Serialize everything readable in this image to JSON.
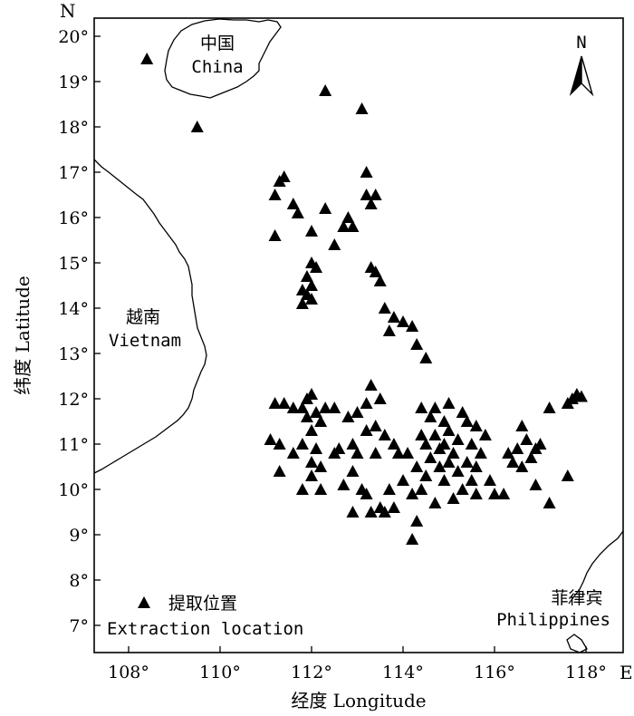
{
  "map": {
    "corner_north": "N",
    "corner_east": "E",
    "north_arrow_label": "N",
    "x_axis_title": "经度 Longitude",
    "y_axis_title": "纬度 Latitude",
    "lon_ticks": [
      "108°",
      "110°",
      "112°",
      "114°",
      "116°",
      "118°"
    ],
    "lat_ticks": [
      "20°",
      "19°",
      "18°",
      "17°",
      "16°",
      "15°",
      "14°",
      "13°",
      "12°",
      "11°",
      "10°",
      "9°",
      "8°",
      "7°"
    ],
    "regions": {
      "china_zh": "中国",
      "china_en": "China",
      "vietnam_zh": "越南",
      "vietnam_en": "Vietnam",
      "philippines_zh": "菲律宾",
      "philippines_en": "Philippines"
    },
    "legend": {
      "label_zh": "提取位置",
      "label_en": "Extraction location"
    },
    "colors": {
      "land_outline": "#000000",
      "marker": "#000000",
      "background": "#ffffff"
    },
    "extent": {
      "lon_min": 107.3,
      "lon_max": 118.9,
      "lat_min": 6.4,
      "lat_max": 20.4
    },
    "extraction_locations": [
      [
        108.4,
        19.5
      ],
      [
        109.5,
        18.0
      ],
      [
        112.3,
        18.8
      ],
      [
        113.1,
        18.4
      ],
      [
        111.4,
        16.9
      ],
      [
        111.3,
        16.8
      ],
      [
        111.2,
        16.5
      ],
      [
        111.6,
        16.3
      ],
      [
        111.7,
        16.1
      ],
      [
        112.3,
        16.2
      ],
      [
        112.0,
        15.7
      ],
      [
        111.2,
        15.6
      ],
      [
        113.2,
        17.0
      ],
      [
        113.2,
        16.5
      ],
      [
        113.4,
        16.5
      ],
      [
        113.3,
        16.3
      ],
      [
        112.7,
        15.8
      ],
      [
        112.9,
        15.8
      ],
      [
        112.8,
        16.0
      ],
      [
        112.5,
        15.4
      ],
      [
        112.0,
        15.0
      ],
      [
        112.1,
        14.9
      ],
      [
        111.9,
        14.7
      ],
      [
        111.8,
        14.4
      ],
      [
        111.9,
        14.3
      ],
      [
        112.0,
        14.5
      ],
      [
        111.8,
        14.1
      ],
      [
        112.0,
        14.2
      ],
      [
        113.3,
        14.9
      ],
      [
        113.4,
        14.8
      ],
      [
        113.5,
        14.6
      ],
      [
        113.6,
        14.0
      ],
      [
        113.8,
        13.8
      ],
      [
        114.0,
        13.7
      ],
      [
        113.7,
        13.5
      ],
      [
        114.2,
        13.6
      ],
      [
        114.3,
        13.2
      ],
      [
        114.5,
        12.9
      ],
      [
        111.2,
        11.9
      ],
      [
        111.4,
        11.9
      ],
      [
        111.6,
        11.8
      ],
      [
        111.9,
        12.0
      ],
      [
        112.0,
        12.1
      ],
      [
        111.8,
        11.8
      ],
      [
        112.1,
        11.7
      ],
      [
        112.3,
        11.8
      ],
      [
        112.5,
        11.8
      ],
      [
        111.9,
        11.6
      ],
      [
        112.2,
        11.5
      ],
      [
        112.0,
        11.3
      ],
      [
        111.1,
        11.1
      ],
      [
        111.3,
        11.0
      ],
      [
        111.8,
        11.0
      ],
      [
        112.1,
        10.9
      ],
      [
        111.6,
        10.8
      ],
      [
        112.5,
        10.8
      ],
      [
        111.3,
        10.4
      ],
      [
        112.0,
        10.6
      ],
      [
        112.2,
        10.5
      ],
      [
        112.0,
        10.3
      ],
      [
        111.8,
        10.0
      ],
      [
        112.2,
        10.0
      ],
      [
        112.7,
        10.1
      ],
      [
        112.8,
        11.6
      ],
      [
        113.0,
        11.7
      ],
      [
        113.2,
        11.3
      ],
      [
        113.4,
        11.4
      ],
      [
        113.6,
        11.2
      ],
      [
        113.3,
        12.3
      ],
      [
        113.5,
        12.0
      ],
      [
        113.2,
        11.9
      ],
      [
        112.9,
        11.0
      ],
      [
        112.6,
        10.9
      ],
      [
        113.0,
        10.8
      ],
      [
        113.4,
        10.8
      ],
      [
        112.9,
        10.4
      ],
      [
        113.1,
        10.0
      ],
      [
        113.2,
        9.9
      ],
      [
        112.9,
        9.5
      ],
      [
        113.3,
        9.5
      ],
      [
        113.5,
        9.6
      ],
      [
        113.6,
        9.5
      ],
      [
        113.8,
        9.6
      ],
      [
        113.7,
        10.0
      ],
      [
        114.0,
        10.2
      ],
      [
        113.9,
        10.8
      ],
      [
        114.3,
        10.5
      ],
      [
        114.5,
        10.3
      ],
      [
        114.2,
        9.9
      ],
      [
        114.4,
        10.0
      ],
      [
        114.3,
        9.3
      ],
      [
        114.2,
        8.9
      ],
      [
        114.4,
        11.8
      ],
      [
        114.6,
        11.6
      ],
      [
        114.4,
        11.2
      ],
      [
        114.5,
        11.0
      ],
      [
        114.7,
        11.2
      ],
      [
        114.9,
        11.5
      ],
      [
        115.0,
        11.3
      ],
      [
        115.2,
        11.1
      ],
      [
        115.4,
        11.5
      ],
      [
        115.6,
        11.4
      ],
      [
        115.5,
        11.0
      ],
      [
        115.7,
        10.8
      ],
      [
        115.1,
        10.8
      ],
      [
        115.0,
        10.6
      ],
      [
        114.8,
        10.5
      ],
      [
        114.9,
        10.2
      ],
      [
        115.2,
        10.4
      ],
      [
        115.4,
        10.6
      ],
      [
        115.3,
        10.0
      ],
      [
        115.5,
        10.2
      ],
      [
        115.6,
        9.9
      ],
      [
        114.8,
        10.9
      ],
      [
        114.6,
        10.7
      ],
      [
        114.9,
        11.0
      ],
      [
        115.3,
        11.7
      ],
      [
        115.8,
        11.2
      ],
      [
        115.6,
        10.5
      ],
      [
        115.1,
        9.8
      ],
      [
        114.7,
        9.7
      ],
      [
        115.9,
        10.2
      ],
      [
        116.0,
        9.9
      ],
      [
        116.2,
        9.9
      ],
      [
        114.7,
        11.8
      ],
      [
        115.0,
        11.9
      ],
      [
        113.8,
        11.0
      ],
      [
        114.1,
        10.8
      ],
      [
        116.6,
        11.4
      ],
      [
        116.7,
        11.1
      ],
      [
        116.5,
        10.9
      ],
      [
        116.3,
        10.8
      ],
      [
        116.8,
        10.7
      ],
      [
        116.9,
        10.9
      ],
      [
        117.0,
        11.0
      ],
      [
        116.6,
        10.5
      ],
      [
        116.4,
        10.6
      ],
      [
        116.9,
        10.1
      ],
      [
        117.2,
        9.7
      ],
      [
        117.2,
        11.8
      ],
      [
        117.6,
        11.9
      ],
      [
        117.7,
        12.0
      ],
      [
        117.8,
        12.1
      ],
      [
        117.9,
        12.05
      ],
      [
        117.6,
        10.3
      ]
    ]
  }
}
